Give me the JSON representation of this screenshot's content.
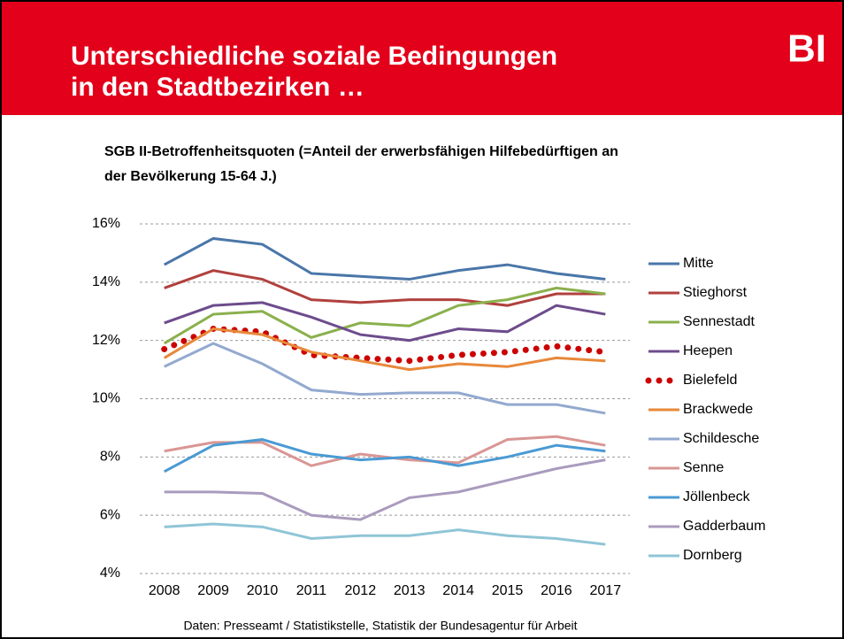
{
  "header": {
    "title_lines": [
      "Unterschiedliche soziale Bedingungen",
      "in den Stadtbezirken …"
    ],
    "logo": "BI"
  },
  "chart_data": {
    "type": "line",
    "title_lines": [
      "SGB II-Betroffenheitsquoten (=Anteil der erwerbsfähigen Hilfebedürftigen an",
      "der Bevölkerung 15-64 J.)"
    ],
    "categories": [
      "2008",
      "2009",
      "2010",
      "2011",
      "2012",
      "2013",
      "2014",
      "2015",
      "2016",
      "2017"
    ],
    "ylim": [
      4,
      16
    ],
    "yticks": [
      {
        "value": 4,
        "label": "4%"
      },
      {
        "value": 6,
        "label": "6%"
      },
      {
        "value": 8,
        "label": "8%"
      },
      {
        "value": 10,
        "label": "10%"
      },
      {
        "value": 12,
        "label": "12%"
      },
      {
        "value": 14,
        "label": "14%"
      },
      {
        "value": 16,
        "label": "16%"
      }
    ],
    "grid": true,
    "legend": "right",
    "series": [
      {
        "name": "Mitte",
        "color": "#4a76a8",
        "values": [
          14.6,
          15.5,
          15.3,
          14.3,
          14.2,
          14.1,
          14.4,
          14.6,
          14.3,
          14.1
        ]
      },
      {
        "name": "Stieghorst",
        "color": "#b0413e",
        "values": [
          13.8,
          14.4,
          14.1,
          13.4,
          13.3,
          13.4,
          13.4,
          13.2,
          13.6,
          13.6
        ]
      },
      {
        "name": "Sennestadt",
        "color": "#8ab04c",
        "values": [
          11.9,
          12.9,
          13.0,
          12.1,
          12.6,
          12.5,
          13.2,
          13.4,
          13.8,
          13.6
        ]
      },
      {
        "name": "Heepen",
        "color": "#6d4c8c",
        "values": [
          12.6,
          13.2,
          13.3,
          12.8,
          12.2,
          12.0,
          12.4,
          12.3,
          13.2,
          12.9
        ]
      },
      {
        "name": "Bielefeld",
        "color": "#cc0000",
        "style": "dotted",
        "values": [
          11.7,
          12.4,
          12.3,
          11.5,
          11.4,
          11.3,
          11.5,
          11.6,
          11.8,
          11.6
        ]
      },
      {
        "name": "Brackwede",
        "color": "#e8883a",
        "values": [
          11.4,
          12.4,
          12.2,
          11.6,
          11.3,
          11.0,
          11.2,
          11.1,
          11.4,
          11.3
        ]
      },
      {
        "name": "Schildesche",
        "color": "#93a9cf",
        "values": [
          11.1,
          11.9,
          11.2,
          10.3,
          10.15,
          10.2,
          10.2,
          9.8,
          9.8,
          9.5
        ]
      },
      {
        "name": "Senne",
        "color": "#d99694",
        "values": [
          8.2,
          8.5,
          8.5,
          7.7,
          8.1,
          7.9,
          7.8,
          8.6,
          8.7,
          8.4
        ]
      },
      {
        "name": "Jöllenbeck",
        "color": "#4a9ad4",
        "values": [
          7.5,
          8.4,
          8.6,
          8.1,
          7.9,
          8.0,
          7.7,
          8.0,
          8.4,
          8.2
        ]
      },
      {
        "name": "Gadderbaum",
        "color": "#a99bbd",
        "values": [
          6.8,
          6.8,
          6.75,
          6.0,
          5.85,
          6.6,
          6.8,
          7.2,
          7.6,
          7.9
        ]
      },
      {
        "name": "Dornberg",
        "color": "#8fc5d6",
        "values": [
          5.6,
          5.7,
          5.6,
          5.2,
          5.3,
          5.3,
          5.5,
          5.3,
          5.2,
          5.0
        ]
      }
    ]
  },
  "source": "Daten: Presseamt / Statistikstelle, Statistik der Bundesagentur für Arbeit"
}
